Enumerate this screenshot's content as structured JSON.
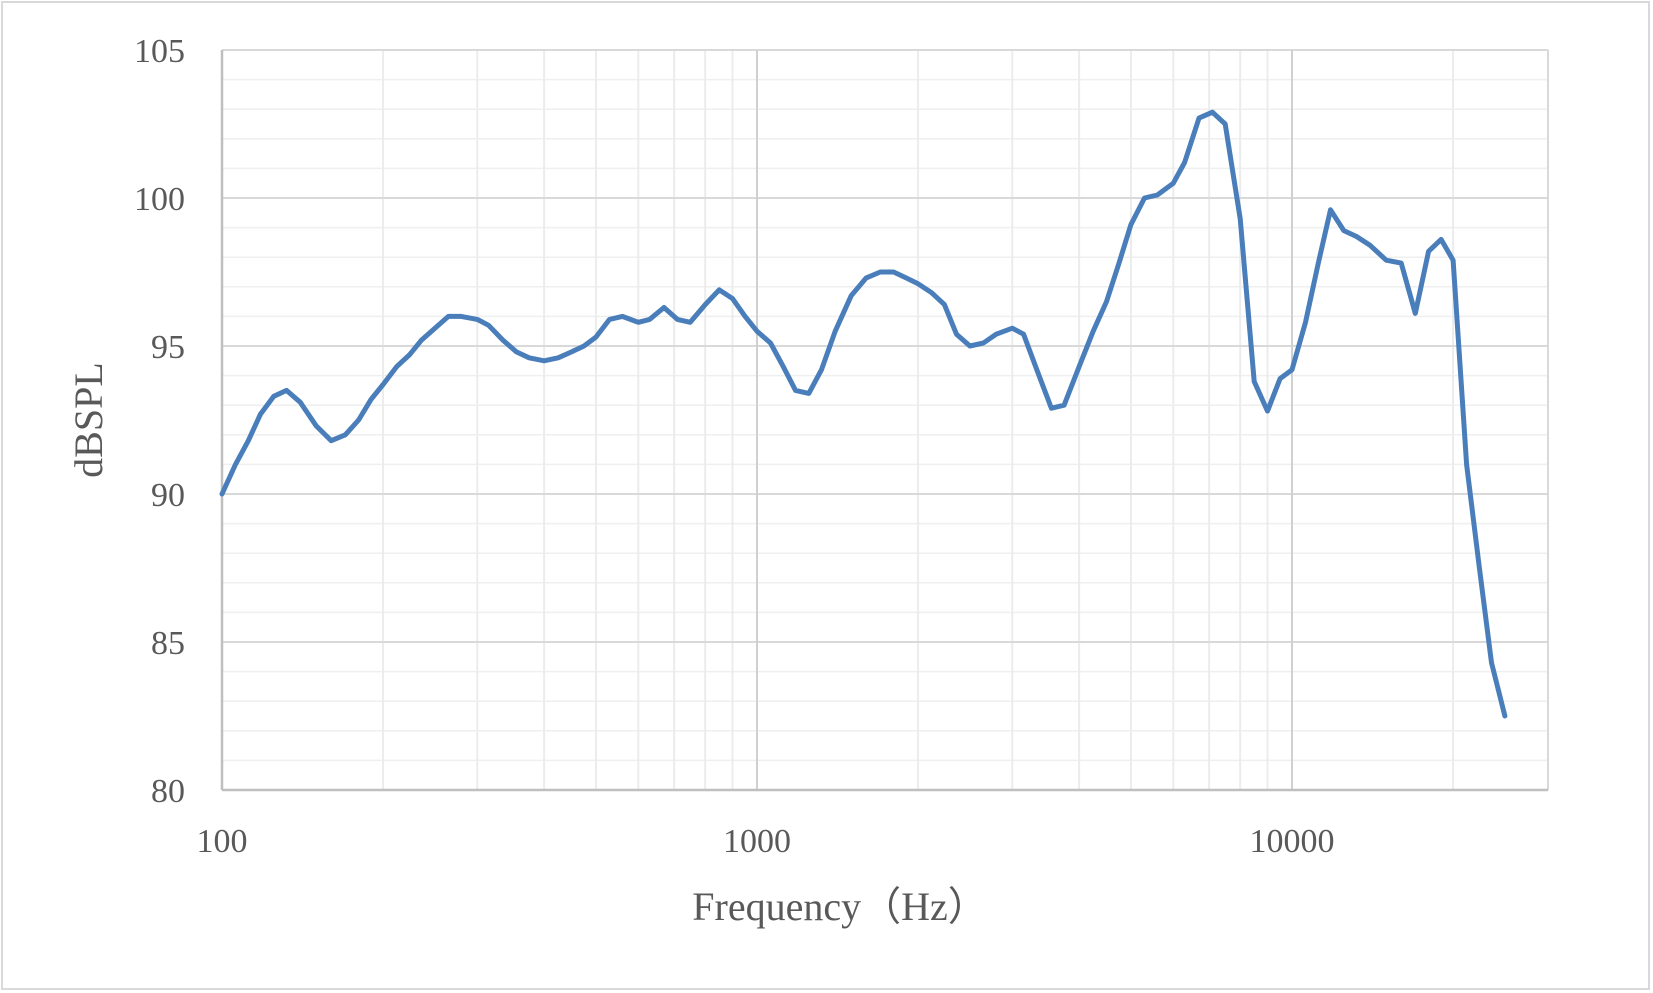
{
  "chart_data": {
    "type": "line",
    "title": "",
    "xlabel": "Frequency（Hz）",
    "ylabel": "dBSPL",
    "x_scale": "log",
    "xlim": [
      100,
      25000
    ],
    "ylim": [
      80,
      105
    ],
    "x_ticks": [
      100,
      1000,
      10000
    ],
    "x_tick_labels": [
      "100",
      "1000",
      "10000"
    ],
    "y_ticks": [
      80,
      85,
      90,
      95,
      100,
      105
    ],
    "y_tick_labels": [
      "80",
      "85",
      "90",
      "95",
      "100",
      "105"
    ],
    "grid": true,
    "legend": "none",
    "series": [
      {
        "color": "#4a7ebb",
        "x": [
          100,
          106,
          112,
          118,
          125,
          132,
          140,
          150,
          160,
          170,
          180,
          190,
          200,
          212,
          224,
          236,
          250,
          265,
          280,
          300,
          315,
          335,
          355,
          375,
          400,
          425,
          450,
          475,
          500,
          530,
          560,
          600,
          630,
          670,
          710,
          750,
          800,
          850,
          900,
          950,
          1000,
          1060,
          1120,
          1180,
          1250,
          1320,
          1400,
          1500,
          1600,
          1700,
          1800,
          1900,
          2000,
          2120,
          2240,
          2360,
          2500,
          2650,
          2800,
          3000,
          3150,
          3350,
          3550,
          3750,
          4000,
          4250,
          4500,
          4750,
          5000,
          5300,
          5600,
          6000,
          6300,
          6700,
          7100,
          7500,
          8000,
          8500,
          9000,
          9500,
          10000,
          10600,
          11200,
          11800,
          12500,
          13200,
          14000,
          15000,
          16000,
          17000,
          18000,
          19000,
          20000,
          21200,
          22400,
          23600,
          25000
        ],
        "y": [
          90.0,
          91.0,
          91.8,
          92.7,
          93.3,
          93.5,
          93.1,
          92.3,
          91.8,
          92.0,
          92.5,
          93.2,
          93.7,
          94.3,
          94.7,
          95.2,
          95.6,
          96.0,
          96.0,
          95.9,
          95.7,
          95.2,
          94.8,
          94.6,
          94.5,
          94.6,
          94.8,
          95.0,
          95.3,
          95.9,
          96.0,
          95.8,
          95.9,
          96.3,
          95.9,
          95.8,
          96.4,
          96.9,
          96.6,
          96.0,
          95.5,
          95.1,
          94.3,
          93.5,
          93.4,
          94.2,
          95.5,
          96.7,
          97.3,
          97.5,
          97.5,
          97.3,
          97.1,
          96.8,
          96.4,
          95.4,
          95.0,
          95.1,
          95.4,
          95.6,
          95.4,
          94.1,
          92.9,
          93.0,
          94.3,
          95.5,
          96.5,
          97.8,
          99.1,
          100.0,
          100.1,
          100.5,
          101.2,
          102.7,
          102.9,
          102.5,
          99.3,
          93.8,
          92.8,
          93.9,
          94.2,
          95.8,
          97.8,
          99.6,
          98.9,
          98.7,
          98.4,
          97.9,
          97.8,
          96.1,
          98.2,
          98.6,
          97.9,
          91.0,
          87.5,
          84.3,
          82.5
        ]
      }
    ]
  }
}
